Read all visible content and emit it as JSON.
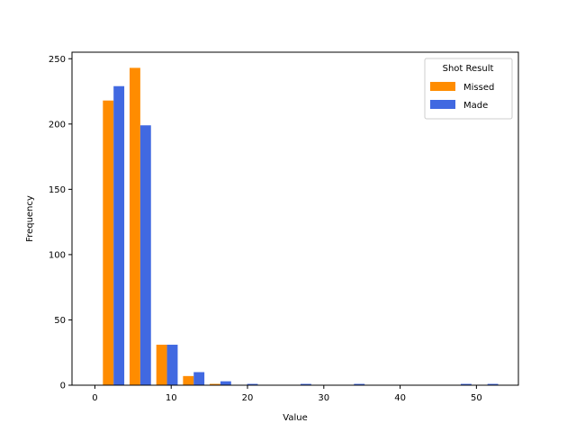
{
  "chart_data": {
    "type": "bar",
    "title": "",
    "xlabel": "Value",
    "ylabel": "Frequency",
    "xlim": [
      -3,
      55.5
    ],
    "ylim": [
      0,
      255
    ],
    "xticks": [
      0,
      10,
      20,
      30,
      40,
      50
    ],
    "yticks": [
      0,
      50,
      100,
      150,
      200,
      250
    ],
    "bin_width": 3.5,
    "bin_starts": [
      0.7,
      4.2,
      7.7,
      11.2,
      14.7,
      18.2,
      21.7,
      25.2,
      28.7,
      32.2,
      35.7,
      39.2,
      42.7,
      46.2,
      49.7
    ],
    "grid": false,
    "legend": {
      "title": "Shot Result",
      "position": "top-right"
    },
    "series": [
      {
        "name": "Missed",
        "color": "#ff8c00",
        "values": [
          218,
          243,
          31,
          7,
          1,
          0,
          0,
          0,
          0,
          0,
          0,
          0,
          0,
          0,
          0
        ]
      },
      {
        "name": "Made",
        "color": "#4169e1",
        "values": [
          229,
          199,
          31,
          10,
          3,
          1,
          0,
          1,
          0,
          1,
          0,
          0,
          0,
          1,
          1
        ]
      }
    ]
  }
}
